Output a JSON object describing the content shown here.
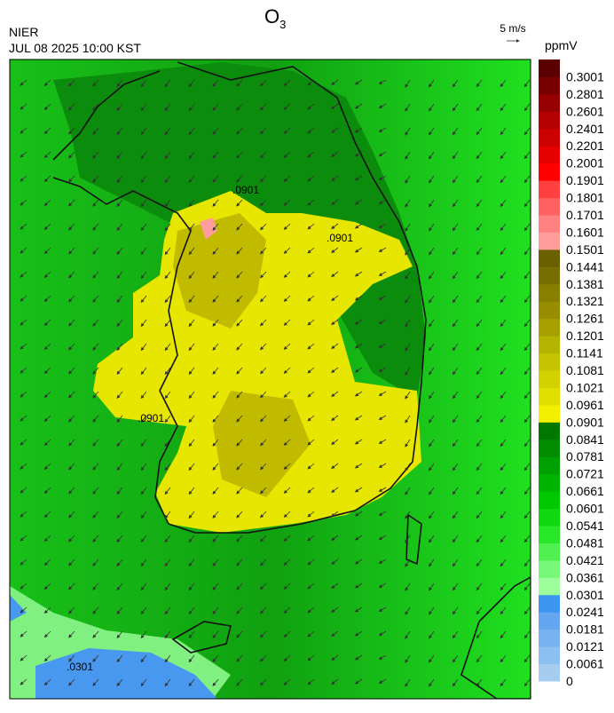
{
  "header": {
    "title": "O",
    "title_sub": "3",
    "agency": "NIER",
    "datetime": "JUL 08 2025 10:00 KST",
    "wind_scale": "5 m/s"
  },
  "contour_labels": [
    ".0901",
    ".0901",
    ".0901",
    ".0301"
  ],
  "colorbar": {
    "unit": "ppmV",
    "levels": [
      0,
      0.0061,
      0.0121,
      0.0181,
      0.0241,
      0.0301,
      0.0361,
      0.0421,
      0.0481,
      0.0541,
      0.0601,
      0.0661,
      0.0721,
      0.0781,
      0.0841,
      0.0901,
      0.0961,
      0.1021,
      0.1081,
      0.1141,
      0.1201,
      0.1261,
      0.1321,
      0.1381,
      0.1441,
      0.1501,
      0.1601,
      0.1701,
      0.1801,
      0.1901,
      0.2001,
      0.2201,
      0.2401,
      0.2601,
      0.2801,
      0.3001
    ],
    "colors": [
      "#a4cdf0",
      "#8cc0f0",
      "#78b2f0",
      "#64a6f0",
      "#3c96f0",
      "#9cff9c",
      "#78f878",
      "#50f050",
      "#28e628",
      "#10d810",
      "#00c800",
      "#00b400",
      "#00a000",
      "#008c00",
      "#007800",
      "#f0f000",
      "#e0e000",
      "#d2d200",
      "#c4c400",
      "#b4b400",
      "#a6a000",
      "#968e00",
      "#887e00",
      "#786e00",
      "#6a6000",
      "#ff9c9c",
      "#ff8080",
      "#ff6060",
      "#ff4040",
      "#ff0000",
      "#e60000",
      "#cc0000",
      "#b40000",
      "#960000",
      "#780000",
      "#5a0000"
    ]
  }
}
